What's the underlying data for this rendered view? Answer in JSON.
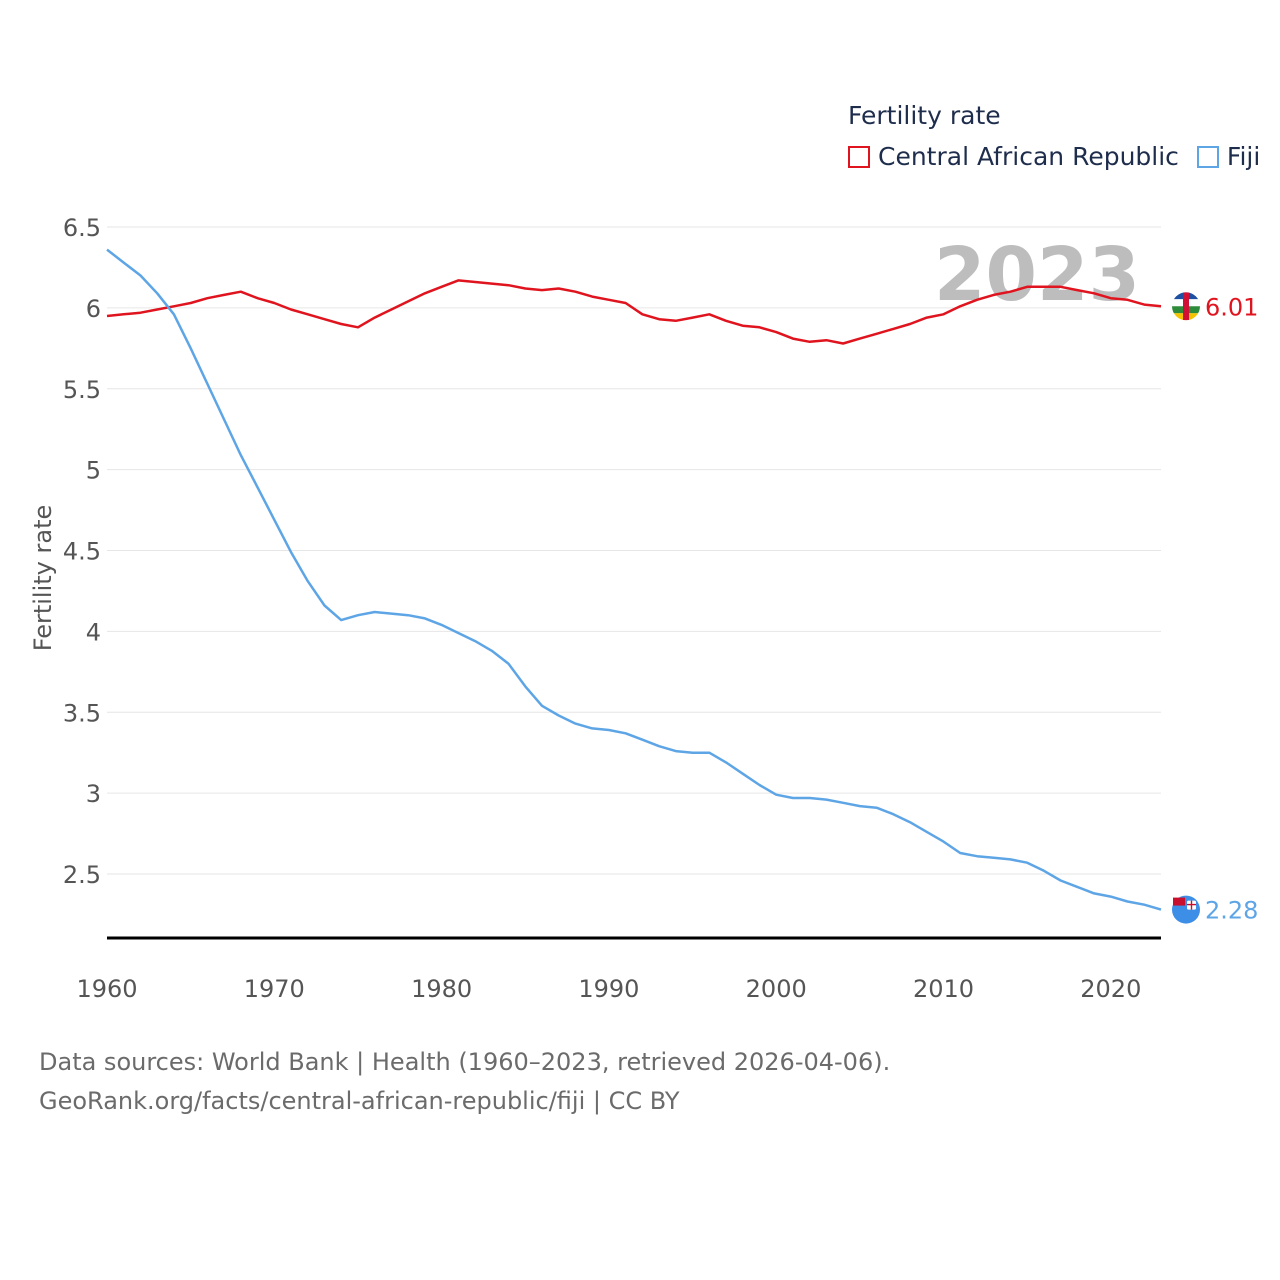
{
  "chart_data": {
    "type": "line",
    "ylabel": "Fertility rate",
    "xlabel": "",
    "legend_title": "Fertility rate",
    "legend_position": "top-right",
    "grid": true,
    "ylim": [
      2.1,
      6.5
    ],
    "xlim": [
      1960,
      2023
    ],
    "y_ticks": [
      "2.5",
      "3",
      "3.5",
      "4",
      "4.5",
      "5",
      "5.5",
      "6",
      "6.5"
    ],
    "x_ticks": [
      "1960",
      "1970",
      "1980",
      "1990",
      "2000",
      "2010",
      "2020"
    ],
    "year_label": "2023",
    "x": [
      1960,
      1961,
      1962,
      1963,
      1964,
      1965,
      1966,
      1967,
      1968,
      1969,
      1970,
      1971,
      1972,
      1973,
      1974,
      1975,
      1976,
      1977,
      1978,
      1979,
      1980,
      1981,
      1982,
      1983,
      1984,
      1985,
      1986,
      1987,
      1988,
      1989,
      1990,
      1991,
      1992,
      1993,
      1994,
      1995,
      1996,
      1997,
      1998,
      1999,
      2000,
      2001,
      2002,
      2003,
      2004,
      2005,
      2006,
      2007,
      2008,
      2009,
      2010,
      2011,
      2012,
      2013,
      2014,
      2015,
      2016,
      2017,
      2018,
      2019,
      2020,
      2021,
      2022,
      2023
    ],
    "series": [
      {
        "name": "Central African Republic",
        "color": "#e0141e",
        "end_label": "6.01",
        "values": [
          5.95,
          5.96,
          5.97,
          5.99,
          6.01,
          6.03,
          6.06,
          6.08,
          6.1,
          6.06,
          6.03,
          5.99,
          5.96,
          5.93,
          5.9,
          5.88,
          5.94,
          5.99,
          6.04,
          6.09,
          6.13,
          6.17,
          6.16,
          6.15,
          6.14,
          6.12,
          6.11,
          6.12,
          6.1,
          6.07,
          6.05,
          6.03,
          5.96,
          5.93,
          5.92,
          5.94,
          5.96,
          5.92,
          5.89,
          5.88,
          5.85,
          5.81,
          5.79,
          5.8,
          5.78,
          5.81,
          5.84,
          5.87,
          5.9,
          5.94,
          5.96,
          6.01,
          6.05,
          6.08,
          6.1,
          6.13,
          6.13,
          6.13,
          6.11,
          6.09,
          6.06,
          6.05,
          6.02,
          6.01
        ]
      },
      {
        "name": "Fiji",
        "color": "#5ea5e6",
        "end_label": "2.28",
        "values": [
          6.36,
          6.28,
          6.2,
          6.09,
          5.96,
          5.75,
          5.53,
          5.31,
          5.09,
          4.89,
          4.69,
          4.49,
          4.31,
          4.16,
          4.07,
          4.1,
          4.12,
          4.11,
          4.1,
          4.08,
          4.04,
          3.99,
          3.94,
          3.88,
          3.8,
          3.66,
          3.54,
          3.48,
          3.43,
          3.4,
          3.39,
          3.37,
          3.33,
          3.29,
          3.26,
          3.25,
          3.25,
          3.19,
          3.12,
          3.05,
          2.99,
          2.97,
          2.97,
          2.96,
          2.94,
          2.92,
          2.91,
          2.87,
          2.82,
          2.76,
          2.7,
          2.63,
          2.61,
          2.6,
          2.59,
          2.57,
          2.52,
          2.46,
          2.42,
          2.38,
          2.36,
          2.33,
          2.31,
          2.28
        ]
      }
    ]
  },
  "footer": {
    "line1": "Data sources: World Bank | Health (1960–2023, retrieved 2026-04-06).",
    "line2": "GeoRank.org/facts/central-african-republic/fiji | CC BY"
  }
}
